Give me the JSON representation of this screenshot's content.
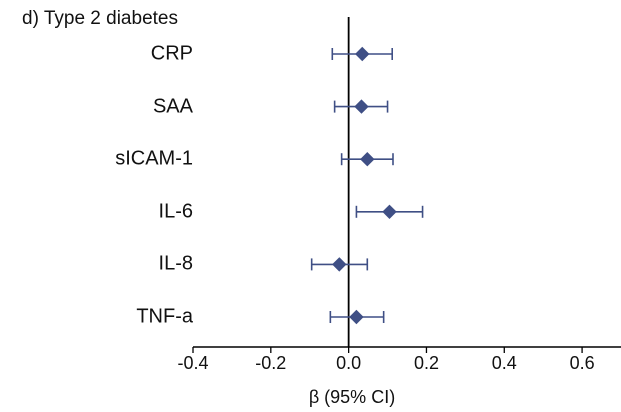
{
  "chart_data": {
    "type": "scatter",
    "subtype": "forest-plot",
    "title": "d) Type 2 diabetes",
    "xlabel": "β (95% CI)",
    "ylabel": "",
    "xlim": [
      -0.4,
      0.7
    ],
    "xticks": [
      -0.4,
      -0.2,
      0.0,
      0.2,
      0.4,
      0.6
    ],
    "xtick_labels": [
      "-0.4",
      "-0.2",
      "0.0",
      "0.2",
      "0.4",
      "0.6"
    ],
    "reference_line": 0,
    "grid": false,
    "marker": "diamond",
    "color": "#3f4f85",
    "categories": [
      "CRP",
      "SAA",
      "sICAM-1",
      "IL-6",
      "IL-8",
      "TNF-a"
    ],
    "estimates": [
      0.035,
      0.033,
      0.048,
      0.105,
      -0.024,
      0.02
    ],
    "ci_lower": [
      -0.042,
      -0.036,
      -0.018,
      0.02,
      -0.095,
      -0.047
    ],
    "ci_upper": [
      0.112,
      0.1,
      0.114,
      0.19,
      0.048,
      0.09
    ]
  }
}
